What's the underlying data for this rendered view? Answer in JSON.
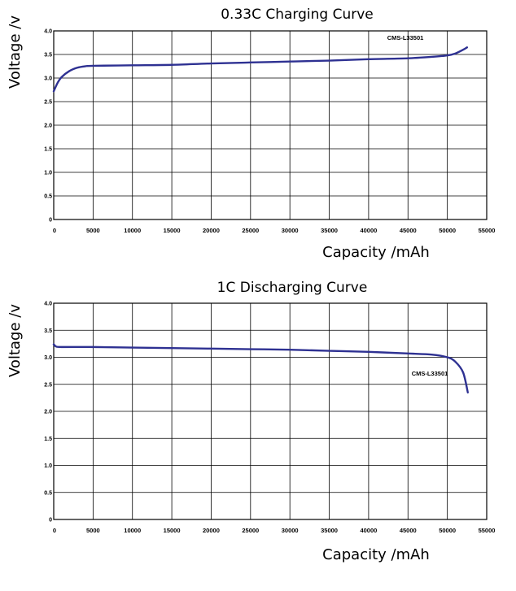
{
  "chart_data": [
    {
      "type": "line",
      "title": "0.33C Charging Curve",
      "xlabel": "Capacity /mAh",
      "ylabel": "Voltage /v",
      "xlim": [
        0,
        55000
      ],
      "ylim": [
        0,
        4.0
      ],
      "xticks": [
        "0",
        "5000",
        "10000",
        "15000",
        "20000",
        "25000",
        "30000",
        "35000",
        "40000",
        "45000",
        "50000",
        "55000"
      ],
      "yticks": [
        "0",
        "0.5",
        "1.0",
        "1.5",
        "2.0",
        "2.5",
        "3.0",
        "3.5",
        "4.0"
      ],
      "grid": true,
      "annotation": "CMS-L33501",
      "series": [
        {
          "name": "CMS-L33501",
          "color": "#2e3192",
          "points": [
            [
              0,
              2.72
            ],
            [
              500,
              2.9
            ],
            [
              1000,
              3.02
            ],
            [
              2000,
              3.15
            ],
            [
              3000,
              3.22
            ],
            [
              4000,
              3.25
            ],
            [
              5000,
              3.26
            ],
            [
              10000,
              3.27
            ],
            [
              15000,
              3.28
            ],
            [
              20000,
              3.31
            ],
            [
              25000,
              3.33
            ],
            [
              30000,
              3.35
            ],
            [
              35000,
              3.37
            ],
            [
              40000,
              3.4
            ],
            [
              45000,
              3.42
            ],
            [
              48000,
              3.45
            ],
            [
              50000,
              3.48
            ],
            [
              51000,
              3.52
            ],
            [
              52000,
              3.6
            ],
            [
              52500,
              3.65
            ]
          ]
        }
      ]
    },
    {
      "type": "line",
      "title": "1C Discharging Curve",
      "xlabel": "Capacity /mAh",
      "ylabel": "Voltage /v",
      "xlim": [
        0,
        55000
      ],
      "ylim": [
        0,
        4.0
      ],
      "xticks": [
        "0",
        "5000",
        "10000",
        "15000",
        "20000",
        "25000",
        "30000",
        "35000",
        "40000",
        "45000",
        "50000",
        "55000"
      ],
      "yticks": [
        "0",
        "0.5",
        "1.0",
        "1.5",
        "2.0",
        "2.5",
        "3.0",
        "3.5",
        "4.0"
      ],
      "grid": true,
      "annotation": "CMS-L33501",
      "series": [
        {
          "name": "CMS-L33501",
          "color": "#2e3192",
          "points": [
            [
              0,
              3.24
            ],
            [
              300,
              3.2
            ],
            [
              1000,
              3.19
            ],
            [
              5000,
              3.19
            ],
            [
              10000,
              3.18
            ],
            [
              15000,
              3.17
            ],
            [
              20000,
              3.16
            ],
            [
              25000,
              3.15
            ],
            [
              30000,
              3.14
            ],
            [
              35000,
              3.12
            ],
            [
              40000,
              3.1
            ],
            [
              45000,
              3.07
            ],
            [
              48000,
              3.05
            ],
            [
              50000,
              3.0
            ],
            [
              51000,
              2.92
            ],
            [
              52000,
              2.72
            ],
            [
              52600,
              2.35
            ]
          ]
        }
      ]
    }
  ]
}
